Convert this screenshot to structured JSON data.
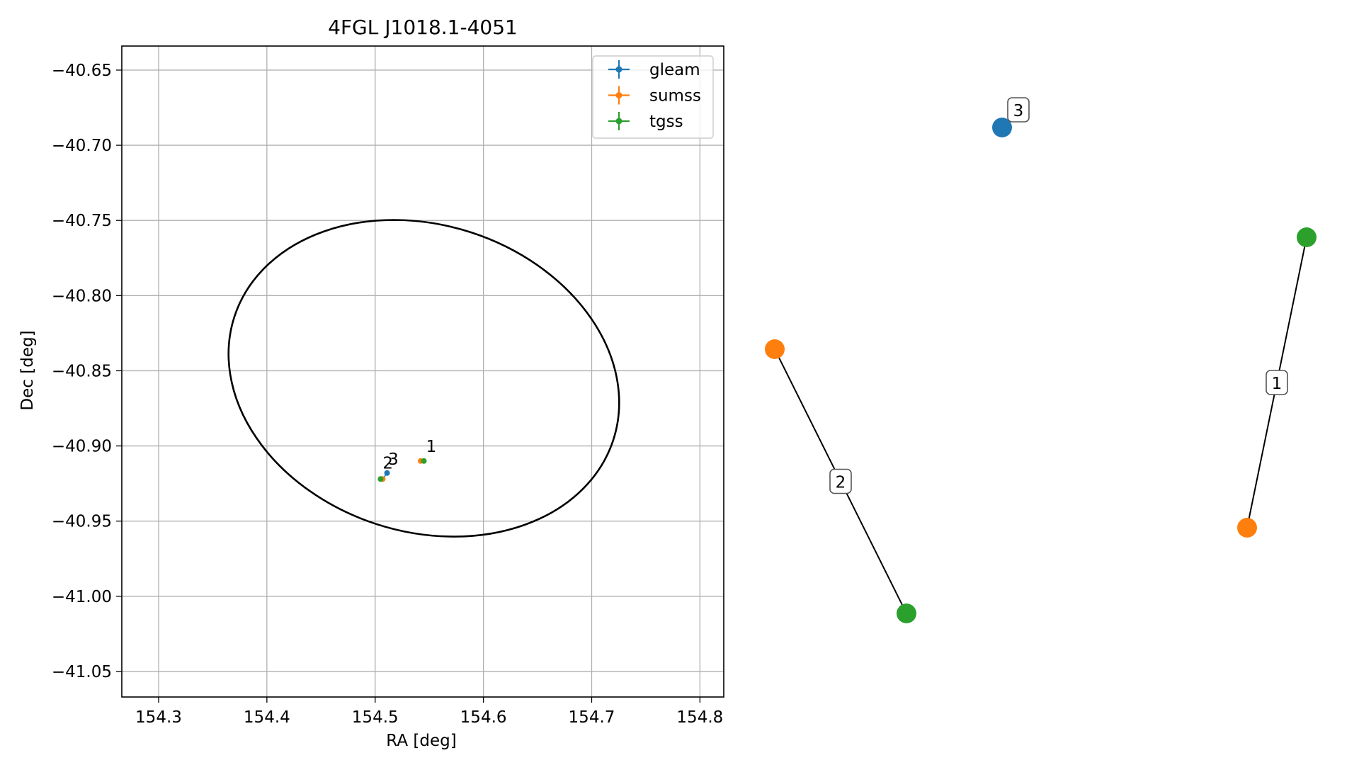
{
  "chart_data": [
    {
      "type": "scatter",
      "title": "4FGL J1018.1-4051",
      "xlabel": "RA [deg]",
      "ylabel": "Dec [deg]",
      "xlim": [
        154.266,
        154.822
      ],
      "ylim": [
        -41.067,
        -40.634
      ],
      "grid": true,
      "legend_position": "top-right",
      "xticks": [
        154.3,
        154.4,
        154.5,
        154.6,
        154.7,
        154.8
      ],
      "xtick_labels": [
        "154.3",
        "154.4",
        "154.5",
        "154.6",
        "154.7",
        "154.8"
      ],
      "yticks": [
        -40.65,
        -40.7,
        -40.75,
        -40.8,
        -40.85,
        -40.9,
        -40.95,
        -41.0,
        -41.05
      ],
      "ytick_labels": [
        "−40.65",
        "−40.70",
        "−40.75",
        "−40.80",
        "−40.85",
        "−40.90",
        "−40.95",
        "−41.00",
        "−41.05"
      ],
      "ellipse": {
        "center": [
          154.545,
          -40.855
        ],
        "ra_semi_axis_deg": 0.184,
        "dec_semi_axis_deg": 0.102,
        "tilt_deg": -18,
        "color": "#000000"
      },
      "series": [
        {
          "name": "gleam",
          "color": "#1f77b4",
          "points": [
            {
              "x": 154.511,
              "y": -40.918
            }
          ]
        },
        {
          "name": "sumss",
          "color": "#ff7f0e",
          "points": [
            {
              "x": 154.542,
              "y": -40.91
            },
            {
              "x": 154.507,
              "y": -40.922
            }
          ]
        },
        {
          "name": "tgss",
          "color": "#2ca02c",
          "points": [
            {
              "x": 154.545,
              "y": -40.91
            },
            {
              "x": 154.505,
              "y": -40.922
            }
          ]
        }
      ],
      "point_labels": [
        {
          "text": "1",
          "x": 154.547,
          "y": -40.904
        },
        {
          "text": "2",
          "x": 154.507,
          "y": -40.915
        },
        {
          "text": "3",
          "x": 154.512,
          "y": -40.9125
        }
      ],
      "legend": [
        "gleam",
        "sumss",
        "tgss"
      ]
    },
    {
      "type": "graph",
      "nodes": [
        {
          "id": "g3",
          "color": "#1f77b4"
        },
        {
          "id": "s2",
          "color": "#ff7f0e"
        },
        {
          "id": "t2",
          "color": "#2ca02c"
        },
        {
          "id": "t1",
          "color": "#2ca02c"
        },
        {
          "id": "s1",
          "color": "#ff7f0e"
        }
      ],
      "edges": [
        {
          "from": "s2",
          "to": "t2",
          "label": "2"
        },
        {
          "from": "t1",
          "to": "s1",
          "label": "1"
        }
      ],
      "node_labels": [
        {
          "node": "g3",
          "text": "3"
        }
      ]
    }
  ]
}
